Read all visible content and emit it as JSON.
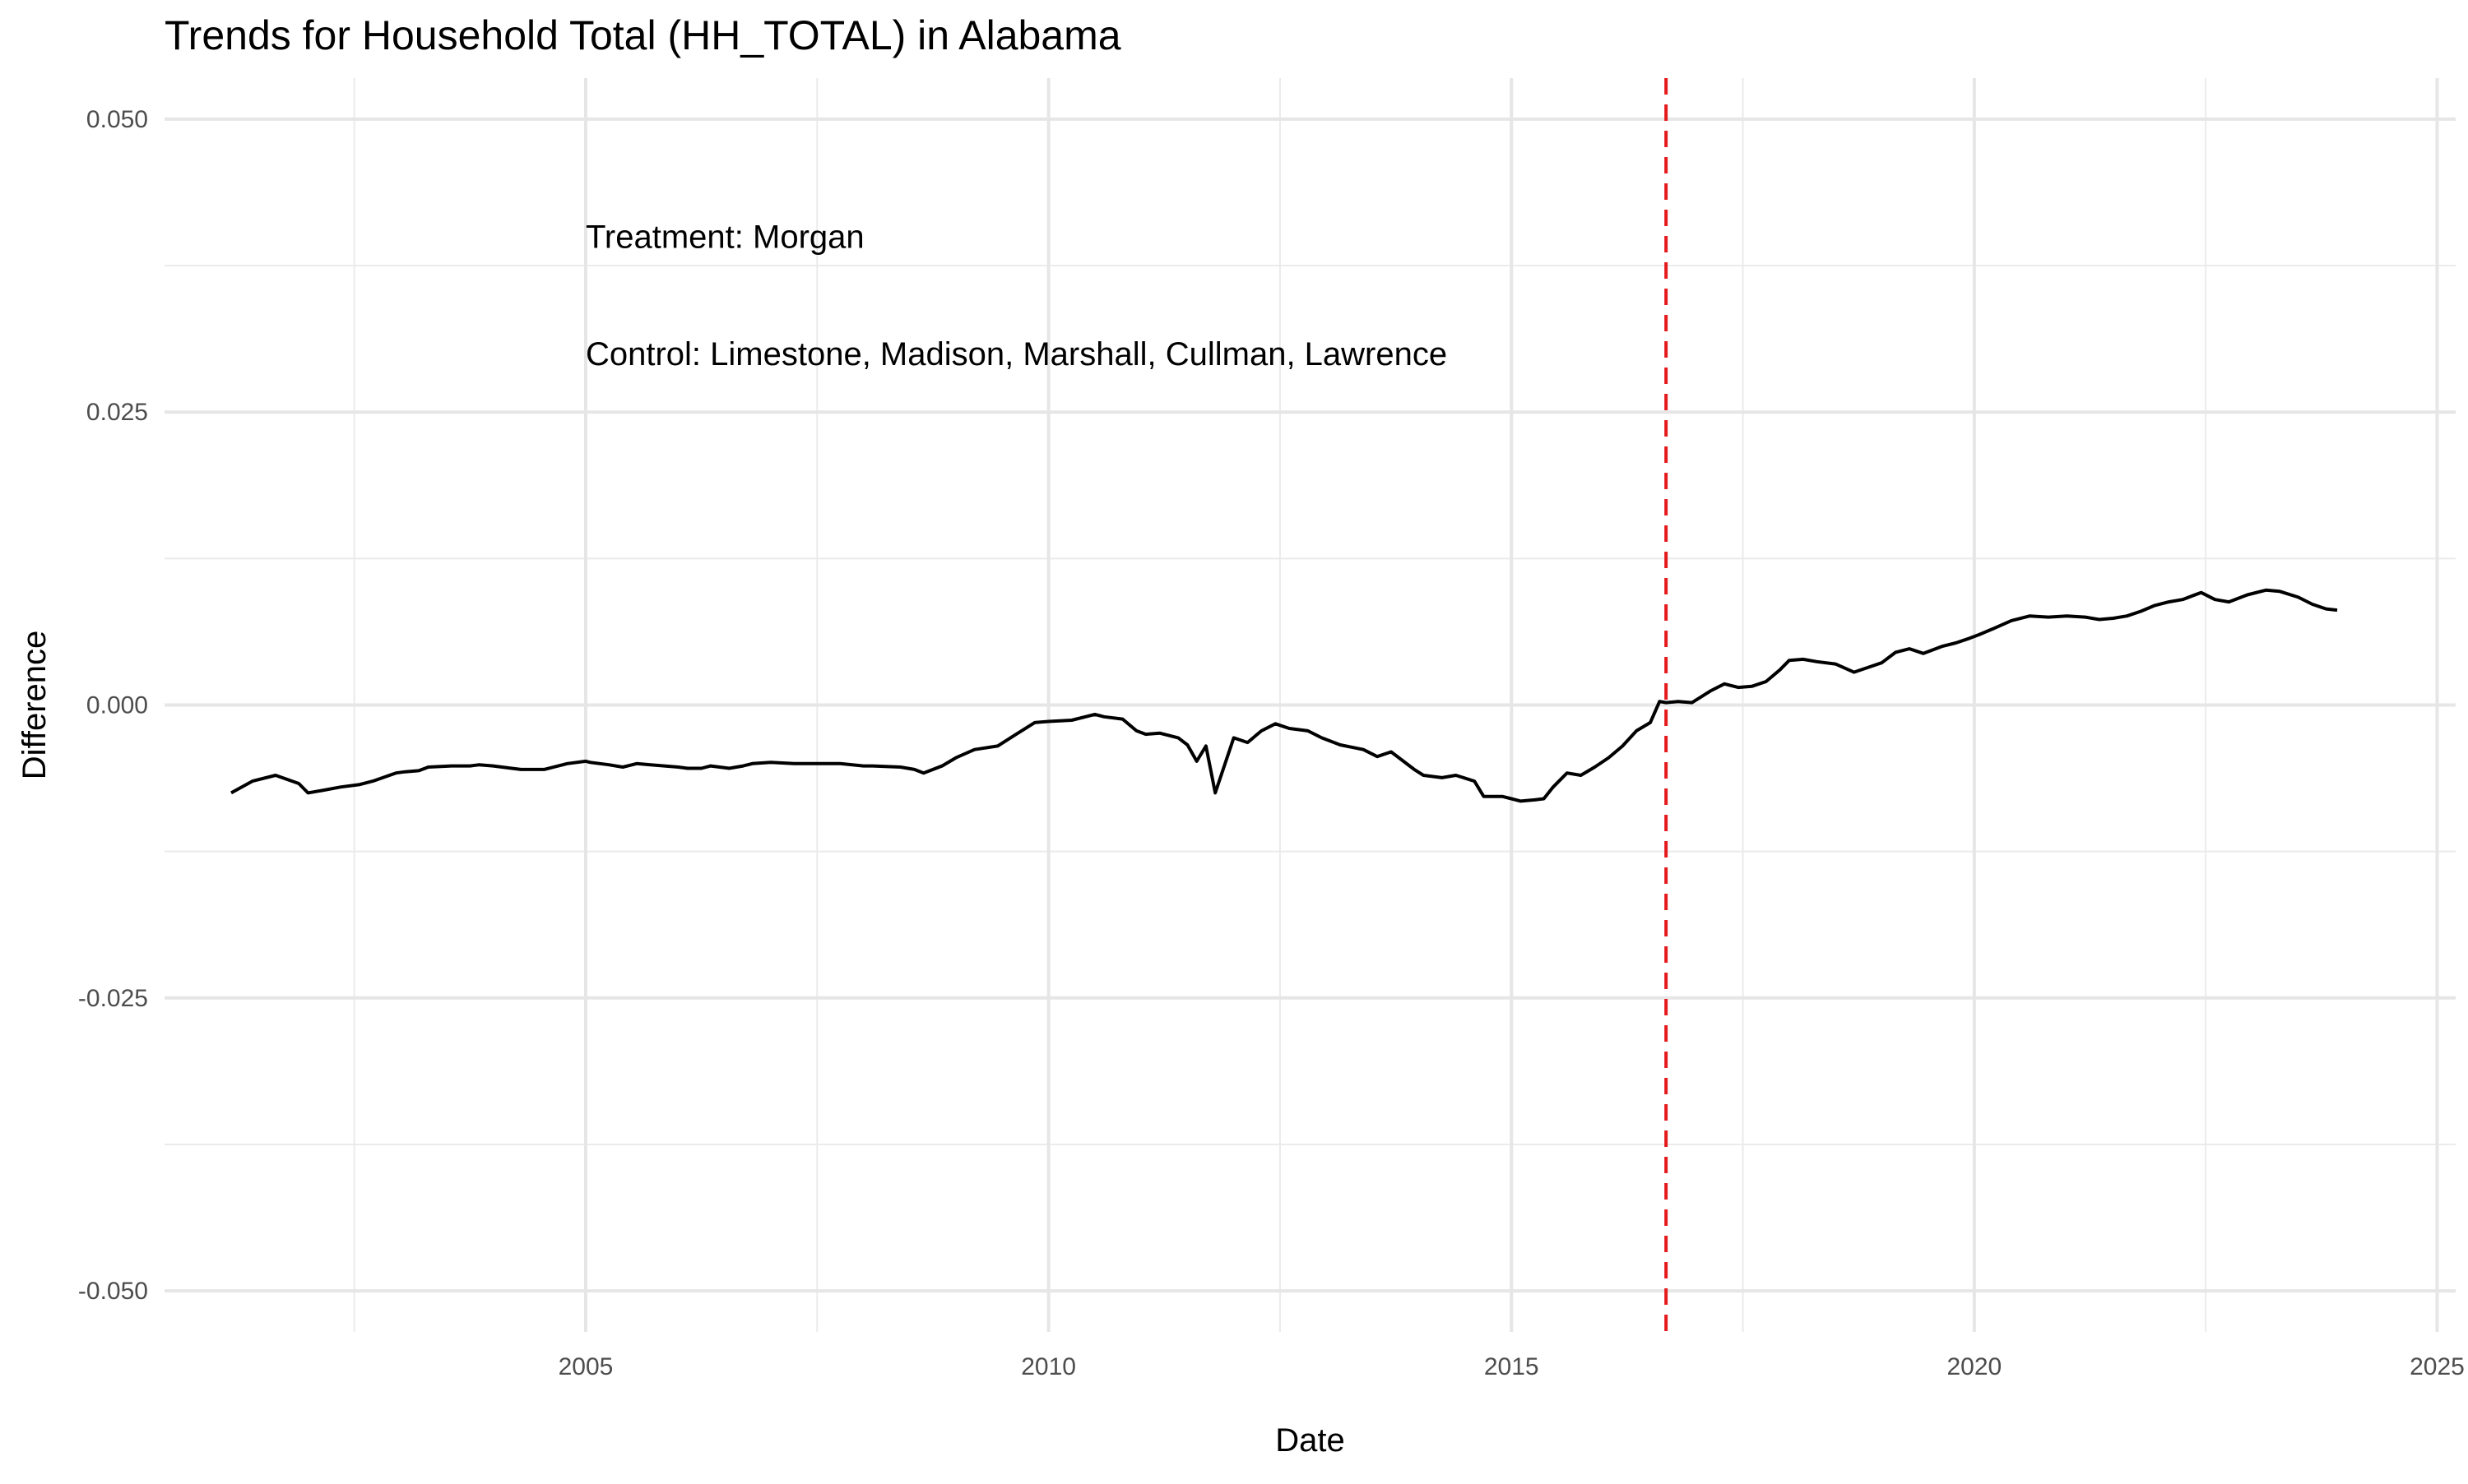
{
  "chart_data": {
    "type": "line",
    "title": "Trends for Household Total (HH_TOTAL) in Alabama",
    "xlabel": "Date",
    "ylabel": "Difference",
    "xlim": [
      2000.45,
      2025.2
    ],
    "ylim": [
      -0.0535,
      0.0535
    ],
    "x_ticks": [
      2005,
      2010,
      2015,
      2020,
      2025
    ],
    "x_tick_labels": [
      "2005",
      "2010",
      "2015",
      "2020",
      "2025"
    ],
    "x_minor_ticks": [
      2002.5,
      2007.5,
      2012.5,
      2017.5,
      2022.5
    ],
    "y_ticks": [
      0.05,
      0.025,
      0.0,
      -0.025,
      -0.05
    ],
    "y_tick_labels": [
      "0.050",
      "0.025",
      "0.000",
      "-0.025",
      "-0.050"
    ],
    "y_minor_ticks": [
      0.0375,
      0.0125,
      -0.0125,
      -0.0375
    ],
    "grid": true,
    "legend": "none",
    "line_color": "#000000",
    "vline": {
      "x": 2016.67,
      "color": "#e41a1c",
      "style": "dashed"
    },
    "annotations": [
      {
        "text": "Treatment: Morgan",
        "x": 2005.0,
        "y": 0.04
      },
      {
        "text": "Control: Limestone, Madison, Marshall, Cullman, Lawrence",
        "x": 2005.0,
        "y": 0.03
      }
    ],
    "series": [
      {
        "x": [
          2001.17,
          2001.4,
          2001.65,
          2001.9,
          2002.0,
          2002.15,
          2002.35,
          2002.55,
          2002.7,
          2002.95,
          2003.05,
          2003.2,
          2003.3,
          2003.55,
          2003.75,
          2003.85,
          2004.0,
          2004.2,
          2004.3,
          2004.55,
          2004.8,
          2005.0,
          2005.05,
          2005.25,
          2005.4,
          2005.55,
          2005.7,
          2006.0,
          2006.1,
          2006.25,
          2006.35,
          2006.55,
          2006.7,
          2006.8,
          2007.0,
          2007.25,
          2007.5,
          2007.75,
          2008.0,
          2008.1,
          2008.4,
          2008.55,
          2008.65,
          2008.85,
          2009.0,
          2009.2,
          2009.45,
          2009.65,
          2009.85,
          2010.0,
          2010.25,
          2010.5,
          2010.6,
          2010.8,
          2010.95,
          2011.05,
          2011.2,
          2011.4,
          2011.5,
          2011.6,
          2011.7,
          2011.8,
          2012.0,
          2012.15,
          2012.3,
          2012.45,
          2012.6,
          2012.8,
          2012.95,
          2013.15,
          2013.4,
          2013.55,
          2013.7,
          2013.95,
          2014.05,
          2014.25,
          2014.4,
          2014.6,
          2014.7,
          2014.9,
          2015.0,
          2015.1,
          2015.25,
          2015.35,
          2015.45,
          2015.6,
          2015.75,
          2015.9,
          2016.05,
          2016.2,
          2016.35,
          2016.5,
          2016.6,
          2016.67,
          2016.8,
          2016.95,
          2017.15,
          2017.3,
          2017.45,
          2017.6,
          2017.75,
          2017.9,
          2018.0,
          2018.15,
          2018.3,
          2018.5,
          2018.7,
          2018.85,
          2019.0,
          2019.15,
          2019.3,
          2019.45,
          2019.65,
          2019.8,
          2019.95,
          2020.05,
          2020.2,
          2020.4,
          2020.6,
          2020.8,
          2021.0,
          2021.2,
          2021.35,
          2021.5,
          2021.65,
          2021.8,
          2021.95,
          2022.1,
          2022.25,
          2022.45,
          2022.6,
          2022.75,
          2022.95,
          2023.15,
          2023.3,
          2023.5,
          2023.65,
          2023.8,
          2023.92
        ],
        "y": [
          -0.0075,
          -0.0065,
          -0.006,
          -0.0067,
          -0.0075,
          -0.0073,
          -0.007,
          -0.0068,
          -0.0065,
          -0.0058,
          -0.0057,
          -0.0056,
          -0.0053,
          -0.0052,
          -0.0052,
          -0.0051,
          -0.0052,
          -0.0054,
          -0.0055,
          -0.0055,
          -0.005,
          -0.0048,
          -0.0049,
          -0.0051,
          -0.0053,
          -0.005,
          -0.0051,
          -0.0053,
          -0.0054,
          -0.0054,
          -0.0052,
          -0.0054,
          -0.0052,
          -0.005,
          -0.0049,
          -0.005,
          -0.005,
          -0.005,
          -0.0052,
          -0.0052,
          -0.0053,
          -0.0055,
          -0.0058,
          -0.0052,
          -0.0045,
          -0.0038,
          -0.0035,
          -0.0025,
          -0.0015,
          -0.0014,
          -0.0013,
          -0.0008,
          -0.001,
          -0.0012,
          -0.0022,
          -0.0025,
          -0.0024,
          -0.0028,
          -0.0034,
          -0.0048,
          -0.0035,
          -0.0075,
          -0.0028,
          -0.0032,
          -0.0022,
          -0.0016,
          -0.002,
          -0.0022,
          -0.0028,
          -0.0034,
          -0.0038,
          -0.0044,
          -0.004,
          -0.0055,
          -0.006,
          -0.0062,
          -0.006,
          -0.0065,
          -0.0078,
          -0.0078,
          -0.008,
          -0.0082,
          -0.0081,
          -0.008,
          -0.007,
          -0.0058,
          -0.006,
          -0.0053,
          -0.0045,
          -0.0035,
          -0.0022,
          -0.0015,
          0.0003,
          0.0002,
          0.0003,
          0.0002,
          0.0012,
          0.0018,
          0.0015,
          0.0016,
          0.002,
          0.003,
          0.0038,
          0.0039,
          0.0037,
          0.0035,
          0.0028,
          0.0032,
          0.0036,
          0.0045,
          0.0048,
          0.0044,
          0.005,
          0.0053,
          0.0057,
          0.006,
          0.0065,
          0.0072,
          0.0076,
          0.0075,
          0.0076,
          0.0075,
          0.0073,
          0.0074,
          0.0076,
          0.008,
          0.0085,
          0.0088,
          0.009,
          0.0096,
          0.009,
          0.0088,
          0.0094,
          0.0098,
          0.0097,
          0.0092,
          0.0086,
          0.0082,
          0.0081
        ]
      }
    ]
  }
}
